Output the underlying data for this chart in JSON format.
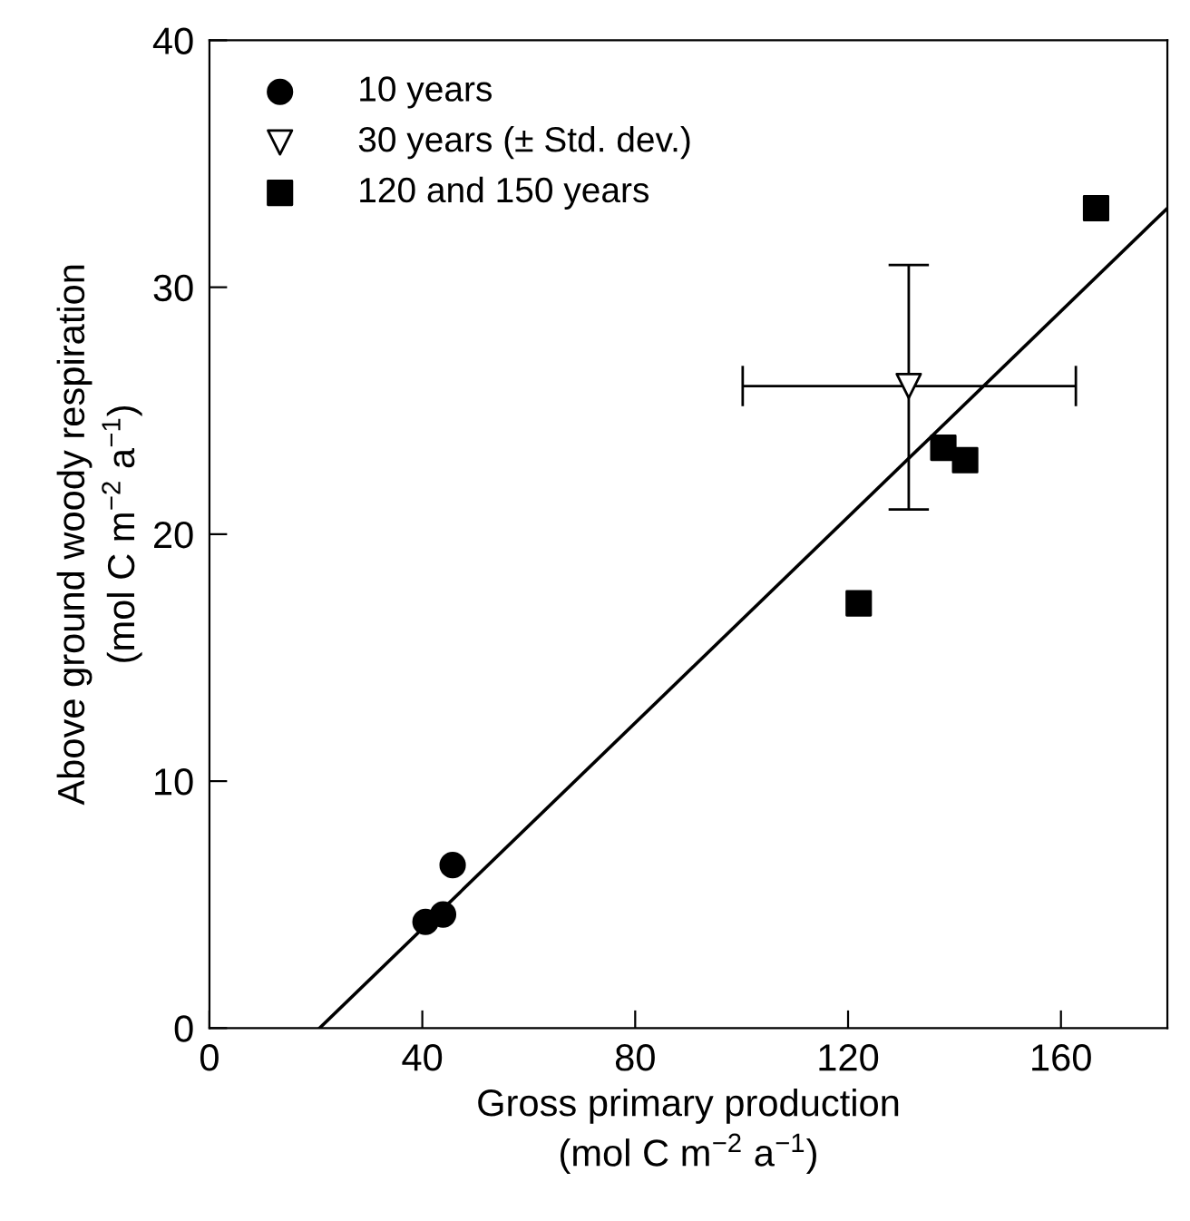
{
  "chart_data": {
    "type": "scatter",
    "xlabel": "Gross primary production\n(mol C m$^{−2}$ a$^{−1}$)",
    "ylabel": "Above ground woody respiration\n(mol C m$^{−2}$ a$^{−1}$)",
    "xlim": [
      0,
      180
    ],
    "xticks": [
      0,
      40,
      80,
      120,
      160
    ],
    "ylim": [
      0,
      40
    ],
    "yticks": [
      0,
      10,
      20,
      30,
      40
    ],
    "grid": false,
    "legend": "top left",
    "series": [
      {
        "name": "10 years",
        "color": "#000000",
        "marker": "circle",
        "x": [
          40.6,
          43.9,
          45.7
        ],
        "values": [
          4.3,
          4.6,
          6.6
        ]
      },
      {
        "name": "30 years (± Std. dev.)",
        "color": "#000000",
        "marker": "triangle_down_open",
        "x": [
          131.4
        ],
        "values": [
          26.0
        ],
        "errors": [
          [
            21.0,
            30.9
          ]
        ],
        "xerrors": [
          [
            100.2,
            162.8
          ]
        ]
      },
      {
        "name": "120 and 150 years",
        "color": "#000000",
        "marker": "square",
        "x": [
          122.0,
          137.9,
          142.0,
          166.6
        ],
        "values": [
          17.2,
          23.5,
          23.0,
          33.2
        ]
      },
      {
        "type": "line",
        "color": "#000000",
        "marker": "none",
        "line_style": "solid",
        "x": [
          20.7,
          180
        ],
        "values": [
          0,
          33.2
        ]
      }
    ]
  }
}
